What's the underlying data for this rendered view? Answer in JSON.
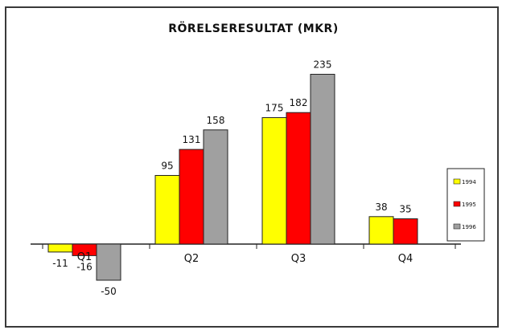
{
  "chart_data": {
    "type": "bar",
    "title": "RÖRELSERESULTAT (MKR)",
    "categories": [
      "Q1",
      "Q2",
      "Q3",
      "Q4"
    ],
    "series": [
      {
        "name": "1994",
        "color": "#ffff00",
        "values": [
          -11,
          95,
          175,
          38
        ]
      },
      {
        "name": "1995",
        "color": "#ff0000",
        "values": [
          -16,
          131,
          182,
          35
        ]
      },
      {
        "name": "1996",
        "color": "#a0a0a0",
        "values": [
          -50,
          158,
          235,
          null
        ]
      }
    ],
    "data_labels": [
      [
        "-11",
        "95",
        "175",
        "38"
      ],
      [
        "-16",
        "131",
        "182",
        "35"
      ],
      [
        "-50",
        "158",
        "235",
        ""
      ]
    ],
    "xlabel": "",
    "ylabel": "",
    "ylim": [
      -60,
      250
    ],
    "grid": false,
    "legend_position": "right"
  }
}
